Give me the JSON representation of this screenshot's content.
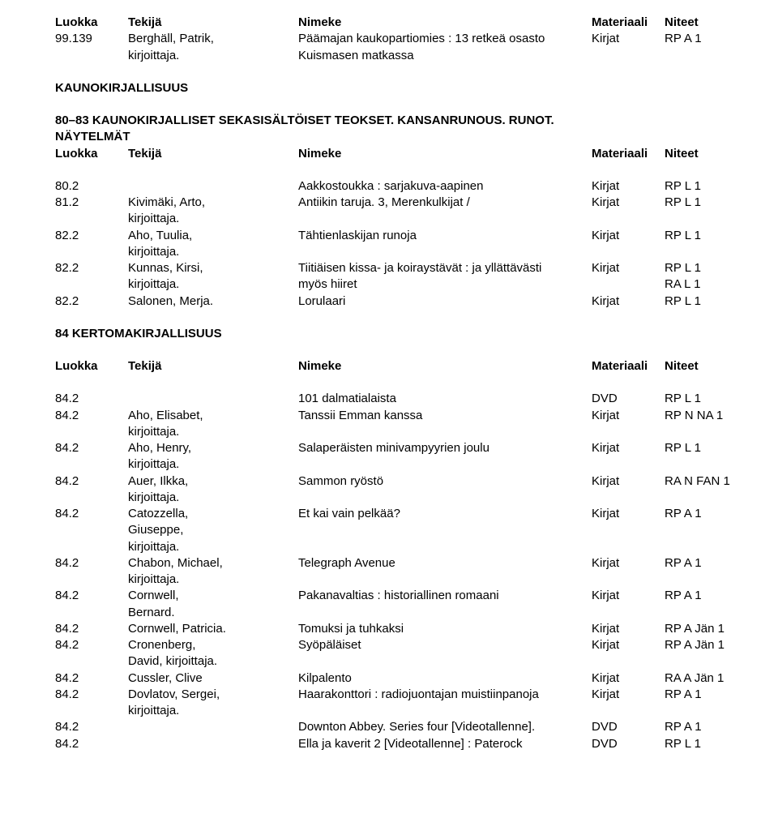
{
  "header1": {
    "luokka": "Luokka",
    "tekija": "Tekijä",
    "nimeke": "Nimeke",
    "mat": "Materiaali",
    "nit": "Niteet"
  },
  "r99_139": {
    "luokka": "99.139",
    "tekija1": "Berghäll, Patrik,",
    "tekija2": "kirjoittaja.",
    "nim1": "Päämajan kaukopartiomies : 13 retkeä osasto",
    "nim2": "Kuismasen matkassa",
    "mat": "Kirjat",
    "nit": "RP A 1"
  },
  "sec_kauno": "KAUNOKIRJALLISUUS",
  "sec_8083_l1": "80–83 KAUNOKIRJALLISET SEKASISÄLTÖISET TEOKSET. KANSANRUNOUS. RUNOT.",
  "sec_8083_l2": "NÄYTELMÄT",
  "header2": {
    "luokka": "Luokka",
    "tekija": "Tekijä",
    "nimeke": "Nimeke",
    "mat": "Materiaali",
    "nit": "Niteet"
  },
  "r80_2": {
    "luokka": "80.2",
    "nim": "Aakkostoukka : sarjakuva-aapinen",
    "mat": "Kirjat",
    "nit": "RP L 1"
  },
  "r81_2": {
    "luokka": "81.2",
    "tekija1": "Kivimäki, Arto,",
    "tekija2": "kirjoittaja.",
    "nim": "Antiikin taruja. 3, Merenkulkijat /",
    "mat": "Kirjat",
    "nit": "RP L 1"
  },
  "r82_2a": {
    "luokka": "82.2",
    "tekija1": "Aho, Tuulia,",
    "tekija2": "kirjoittaja.",
    "nim": "Tähtienlaskijan runoja",
    "mat": "Kirjat",
    "nit": "RP L 1"
  },
  "r82_2b": {
    "luokka": "82.2",
    "tekija1": "Kunnas, Kirsi,",
    "tekija2": "kirjoittaja.",
    "nim1": "Tiitiäisen kissa- ja koiraystävät : ja yllättävästi",
    "nim2": "myös hiiret",
    "mat": "Kirjat",
    "nit1": "RP L 1",
    "nit2": "RA L 1"
  },
  "r82_2c": {
    "luokka": "82.2",
    "tekija": "Salonen, Merja.",
    "nim": "Lorulaari",
    "mat": "Kirjat",
    "nit": "RP L 1"
  },
  "sec_84": "84 KERTOMAKIRJALLISUUS",
  "header3": {
    "luokka": "Luokka",
    "tekija": "Tekijä",
    "nimeke": "Nimeke",
    "mat": "Materiaali",
    "nit": "Niteet"
  },
  "r84a": {
    "luokka": "84.2",
    "nim": "101 dalmatialaista",
    "mat": "DVD",
    "nit": "RP L 1"
  },
  "r84b": {
    "luokka": "84.2",
    "tekija1": "Aho, Elisabet,",
    "tekija2": "kirjoittaja.",
    "nim": "Tanssii Emman kanssa",
    "mat": "Kirjat",
    "nit": "RP N NA 1"
  },
  "r84c": {
    "luokka": "84.2",
    "tekija1": "Aho, Henry,",
    "tekija2": "kirjoittaja.",
    "nim": "Salaperäisten minivampyyrien joulu",
    "mat": "Kirjat",
    "nit": "RP L 1"
  },
  "r84d": {
    "luokka": "84.2",
    "tekija1": "Auer, Ilkka,",
    "tekija2": "kirjoittaja.",
    "nim": "Sammon ryöstö",
    "mat": "Kirjat",
    "nit": "RA N FAN 1"
  },
  "r84e": {
    "luokka": "84.2",
    "tekija1": "Catozzella,",
    "tekija2": "Giuseppe,",
    "tekija3": "kirjoittaja.",
    "nim": "Et kai vain pelkää?",
    "mat": "Kirjat",
    "nit": "RP A 1"
  },
  "r84f": {
    "luokka": "84.2",
    "tekija1": "Chabon, Michael,",
    "tekija2": "kirjoittaja.",
    "nim": "Telegraph Avenue",
    "mat": "Kirjat",
    "nit": "RP A 1"
  },
  "r84g": {
    "luokka": "84.2",
    "tekija1": "Cornwell,",
    "tekija2": "Bernard.",
    "nim": "Pakanavaltias : historiallinen romaani",
    "mat": "Kirjat",
    "nit": "RP A 1"
  },
  "r84h": {
    "luokka": "84.2",
    "tekija": "Cornwell, Patricia.",
    "nim": "Tomuksi ja tuhkaksi",
    "mat": "Kirjat",
    "nit": "RP A Jän 1"
  },
  "r84i": {
    "luokka": "84.2",
    "tekija1": "Cronenberg,",
    "tekija2": "David, kirjoittaja.",
    "nim": "Syöpäläiset",
    "mat": "Kirjat",
    "nit": "RP A Jän 1"
  },
  "r84j": {
    "luokka": "84.2",
    "tekija": "Cussler, Clive",
    "nim": "Kilpalento",
    "mat": "Kirjat",
    "nit": "RA A Jän 1"
  },
  "r84k": {
    "luokka": "84.2",
    "tekija1": "Dovlatov, Sergei,",
    "tekija2": "kirjoittaja.",
    "nim": "Haarakonttori : radiojuontajan muistiinpanoja",
    "mat": "Kirjat",
    "nit": "RP A 1"
  },
  "r84l": {
    "luokka": "84.2",
    "nim": "Downton Abbey. Series four [Videotallenne].",
    "mat": "DVD",
    "nit": "RP A 1"
  },
  "r84m": {
    "luokka": "84.2",
    "nim": "Ella ja kaverit 2 [Videotallenne] : Paterock",
    "mat": "DVD",
    "nit": "RP L 1"
  }
}
